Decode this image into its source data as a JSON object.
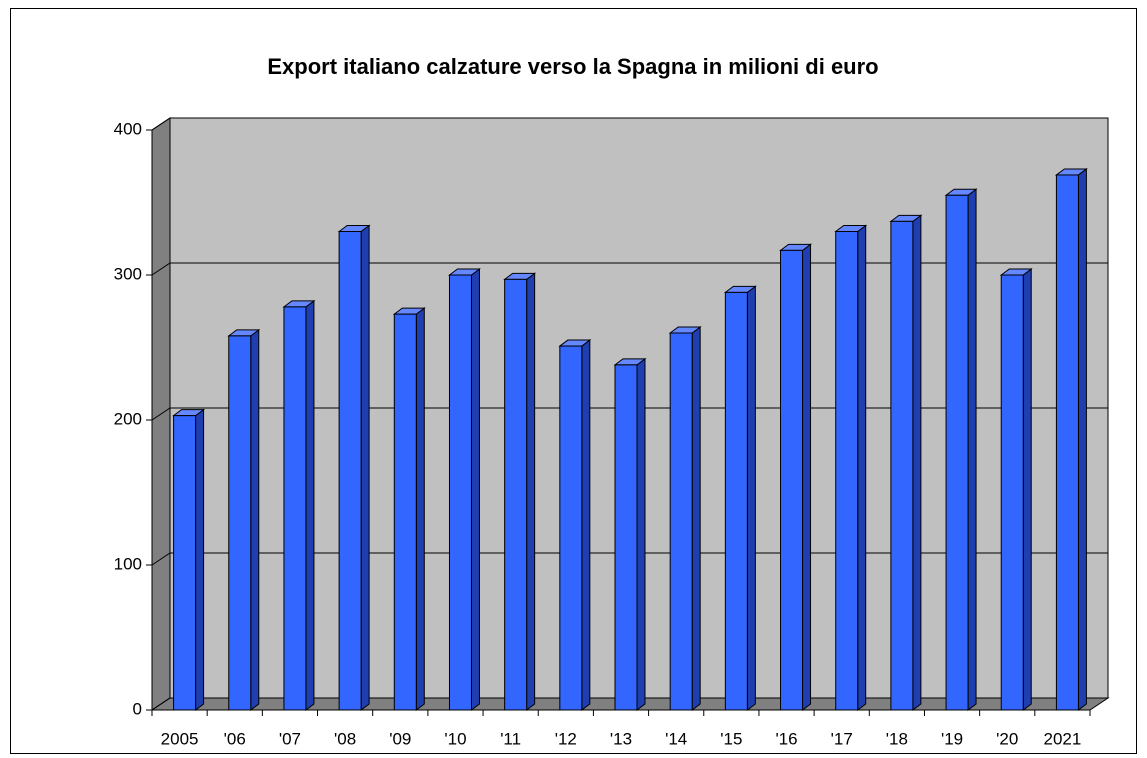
{
  "chart_data": {
    "type": "bar3d",
    "title": "Export italiano calzature verso la Spagna in milioni di euro",
    "categories": [
      "2005",
      "'06",
      "'07",
      "'08",
      "'09",
      "'10",
      "'11",
      "'12",
      "'13",
      "'14",
      "'15",
      "'16",
      "'17",
      "'18",
      "'19",
      "'20",
      "2021"
    ],
    "values": [
      203,
      258,
      278,
      330,
      273,
      300,
      297,
      251,
      238,
      260,
      288,
      317,
      330,
      337,
      355,
      300,
      369
    ],
    "color": "#3366ff",
    "ylim": [
      0,
      400
    ],
    "yticks": [
      0,
      100,
      200,
      300,
      400
    ],
    "grid": true
  }
}
